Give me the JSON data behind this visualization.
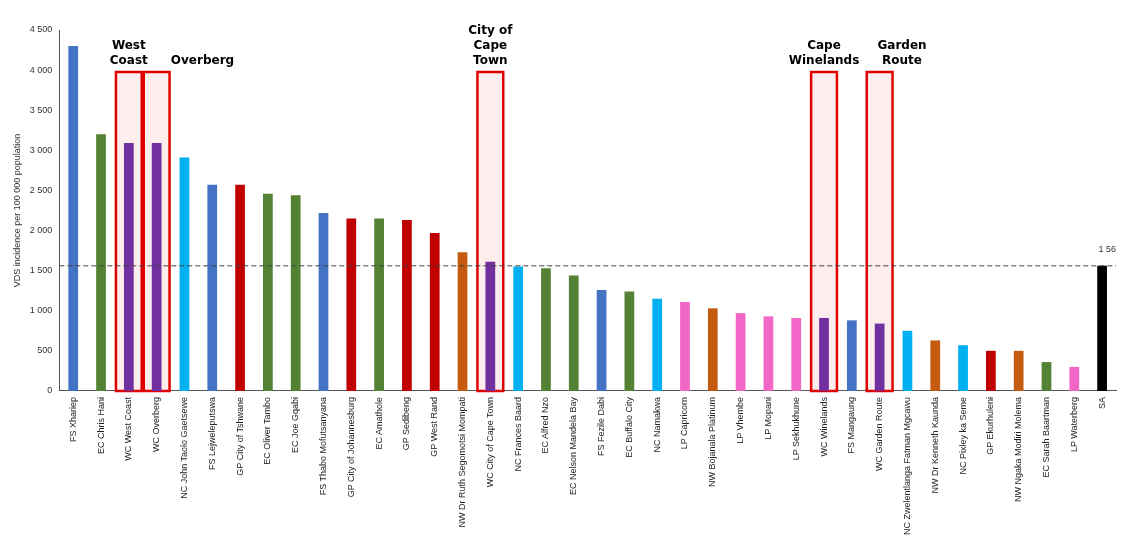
{
  "chart_data": {
    "type": "bar",
    "ylabel": "VDS incidence per 100 000 population",
    "categories": [
      "FS Xhariep",
      "EC Chris Hani",
      "WC West Coast",
      "WC Overberg",
      "NC John Taolo Gaetsewe",
      "FS Lejweleputswa",
      "GP City of Tshwane",
      "EC Oliver Tambo",
      "EC Joe Gqabi",
      "FS Thabo Mofutsanyana",
      "GP City of Johannesburg",
      "EC Amathole",
      "GP Sedibeng",
      "GP West Rand",
      "NW Dr Ruth Segomotsi Mompati",
      "WC City of Cape Town",
      "NC Frances Baard",
      "EC Alfred Nzo",
      "EC Nelson Mandela Bay",
      "FS Fezile Dabi",
      "EC Buffalo City",
      "NC Namakwa",
      "LP Capricorn",
      "NW Bojanala Platinum",
      "LP Vhembe",
      "LP Mopani",
      "LP Sekhukhune",
      "WC Winelands",
      "FS Mangaung",
      "WC Garden Route",
      "NC Zwelentlanga Fatman Mgcawu",
      "NW Dr Kenneth Kaunda",
      "NC Pixley ka Seme",
      "GP Ekurhuleni",
      "NW Ngaka Modiri Molema",
      "EC Sarah Baartman",
      "LP Waterberg",
      "SA"
    ],
    "values": [
      4300,
      3200,
      3090,
      3090,
      2910,
      2570,
      2570,
      2460,
      2440,
      2220,
      2150,
      2150,
      2130,
      1970,
      1730,
      1610,
      1550,
      1530,
      1440,
      1260,
      1240,
      1150,
      1110,
      1030,
      970,
      930,
      910,
      910,
      880,
      840,
      750,
      630,
      570,
      500,
      500,
      360,
      300,
      1560
    ],
    "colors": [
      "#4472c4",
      "#548235",
      "#7030a0",
      "#7030a0",
      "#00b0f0",
      "#4472c4",
      "#c00000",
      "#548235",
      "#548235",
      "#4472c4",
      "#c00000",
      "#548235",
      "#c00000",
      "#c00000",
      "#c55a11",
      "#7030a0",
      "#00b0f0",
      "#548235",
      "#548235",
      "#4472c4",
      "#548235",
      "#00b0f0",
      "#f266c8",
      "#c55a11",
      "#f266c8",
      "#f266c8",
      "#f266c8",
      "#7030a0",
      "#4472c4",
      "#7030a0",
      "#00b0f0",
      "#c55a11",
      "#00b0f0",
      "#c00000",
      "#c55a11",
      "#548235",
      "#f266c8",
      "#000000"
    ],
    "ylim": [
      0,
      4500
    ],
    "yticks": [
      {
        "value": 0,
        "label": "0"
      },
      {
        "value": 500,
        "label": "500"
      },
      {
        "value": 1000,
        "label": "1 000"
      },
      {
        "value": 1500,
        "label": "1 500"
      },
      {
        "value": 2000,
        "label": "2 000"
      },
      {
        "value": 2500,
        "label": "2 500"
      },
      {
        "value": 3000,
        "label": "3 000"
      },
      {
        "value": 3500,
        "label": "3 500"
      },
      {
        "value": 4000,
        "label": "4 000"
      },
      {
        "value": 4500,
        "label": "4 500"
      }
    ],
    "ref_lines": [
      {
        "axis": "y",
        "value": 1560,
        "color": "#404040",
        "line_style": "dashed"
      }
    ],
    "annotations": [
      {
        "text": "1 56",
        "x": "SA",
        "y": 1560
      }
    ],
    "bands": [
      {
        "axis": "x",
        "from": "WC West Coast",
        "to": "WC West Coast",
        "label": "West Coast",
        "color": "#e00000"
      },
      {
        "axis": "x",
        "from": "WC Overberg",
        "to": "WC Overberg",
        "label": "Overberg",
        "color": "#e00000"
      },
      {
        "axis": "x",
        "from": "WC City of Cape Town",
        "to": "WC City of Cape Town",
        "label": "City of Cape Town",
        "color": "#e00000"
      },
      {
        "axis": "x",
        "from": "WC Winelands",
        "to": "WC Winelands",
        "label": "Cape Winelands",
        "color": "#e00000"
      },
      {
        "axis": "x",
        "from": "WC Garden Route",
        "to": "WC Garden Route",
        "label": "Garden Route",
        "color": "#e00000"
      }
    ],
    "grid": false,
    "legend": false
  }
}
